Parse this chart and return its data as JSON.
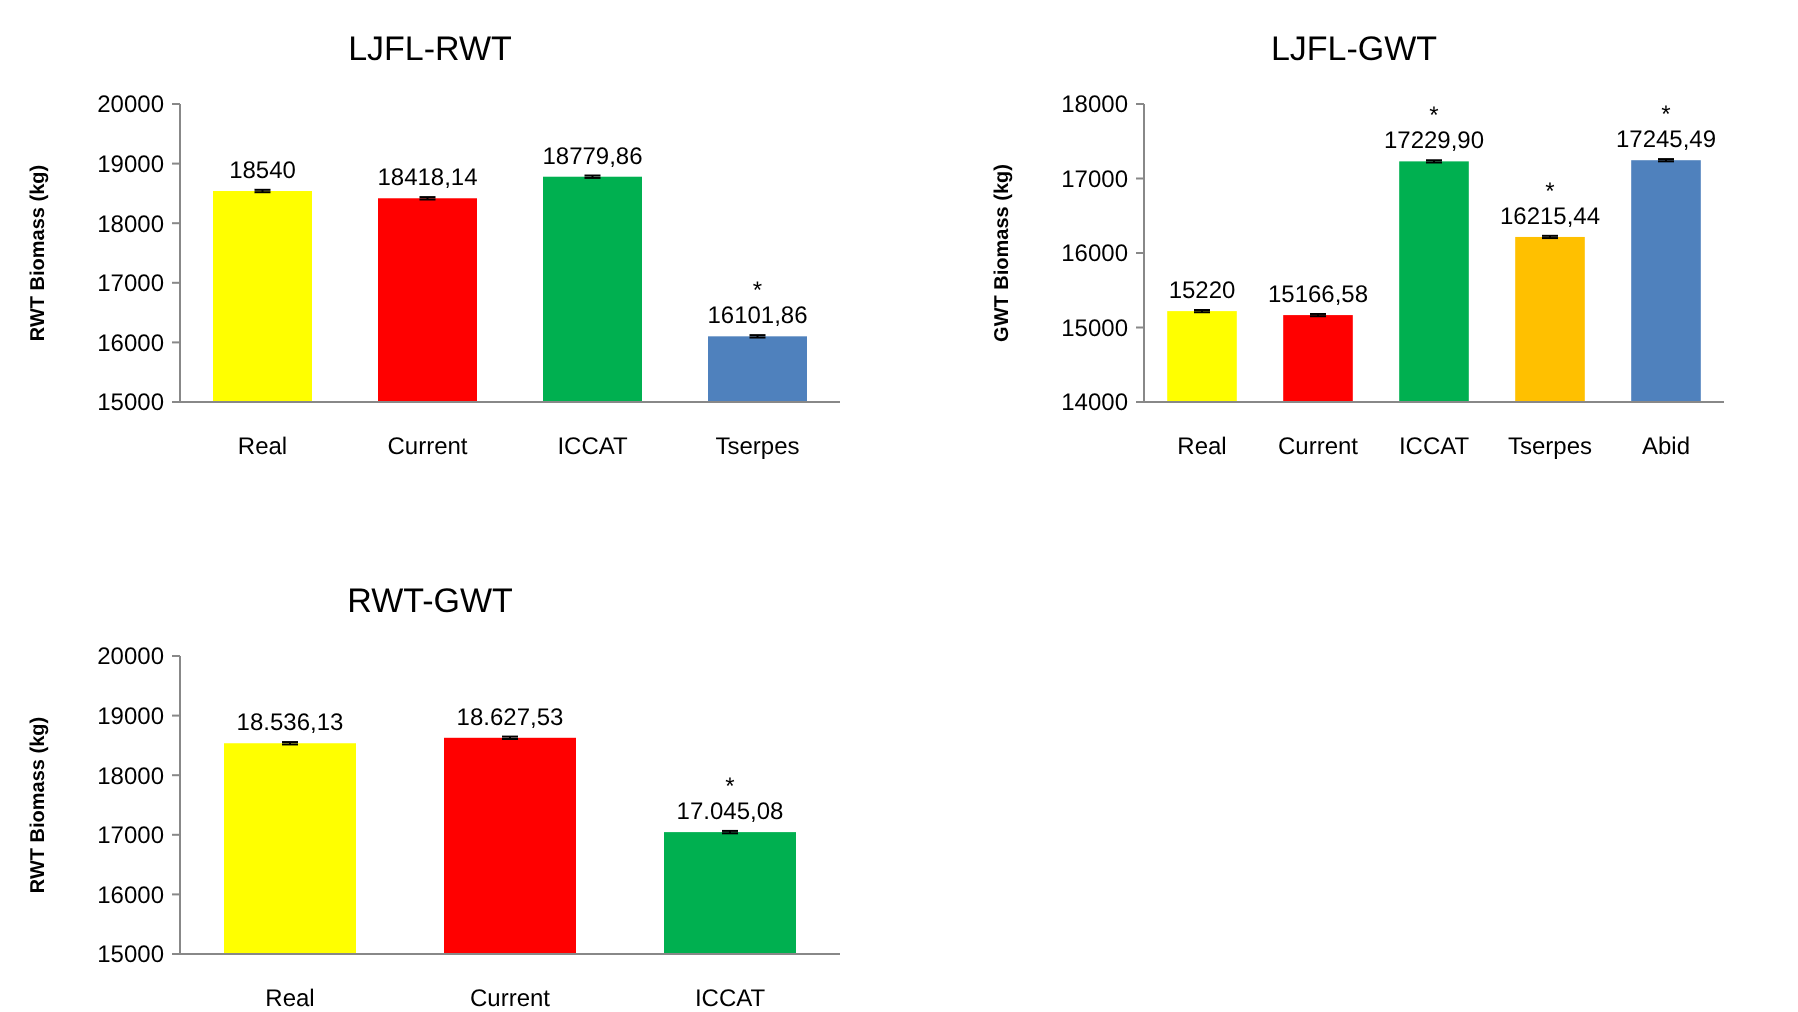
{
  "chart_data": [
    {
      "type": "bar",
      "title": "LJFL-RWT",
      "ylabel": "RWT Biomass  (kg)",
      "categories": [
        "Real",
        "Current",
        "ICCAT",
        "Tserpes"
      ],
      "values": [
        18540,
        18418.14,
        18779.86,
        16101.86
      ],
      "colors": [
        "#ffff00",
        "#ff0000",
        "#00b050",
        "#4f81bd"
      ],
      "value_labels": [
        "18540",
        "18418,14",
        "18779,86",
        "16101,86"
      ],
      "errors": [
        20,
        20,
        20,
        20
      ],
      "ylim": [
        15000,
        20000
      ],
      "yticks": [
        15000,
        16000,
        17000,
        18000,
        19000,
        20000
      ],
      "annotations": [
        {
          "text": "*",
          "x": "Tserpes",
          "y": 16101.86
        }
      ]
    },
    {
      "type": "bar",
      "title": "LJFL-GWT",
      "ylabel": "GWT Biomass  (kg)",
      "categories": [
        "Real",
        "Current",
        "ICCAT",
        "Tserpes",
        "Abid"
      ],
      "values": [
        15220,
        15166.58,
        17229.9,
        16215.44,
        17245.49
      ],
      "colors": [
        "#ffff00",
        "#ff0000",
        "#00b050",
        "#ffc000",
        "#4f81bd"
      ],
      "value_labels": [
        "15220",
        "15166,58",
        "17229,90",
        "16215,44",
        "17245,49"
      ],
      "errors": [
        15,
        15,
        15,
        15,
        15
      ],
      "ylim": [
        14000,
        18000
      ],
      "yticks": [
        14000,
        15000,
        16000,
        17000,
        18000
      ],
      "annotations": [
        {
          "text": "*",
          "x": "ICCAT",
          "y": 17229.9
        },
        {
          "text": "*",
          "x": "Tserpes",
          "y": 16215.44
        },
        {
          "text": "*",
          "x": "Abid",
          "y": 17245.49
        }
      ]
    },
    {
      "type": "bar",
      "title": "RWT-GWT",
      "ylabel": "RWT Biomass  (kg)",
      "categories": [
        "Real",
        "Current",
        "ICCAT"
      ],
      "values": [
        18536.13,
        18627.53,
        17045.08
      ],
      "colors": [
        "#ffff00",
        "#ff0000",
        "#00b050"
      ],
      "value_labels": [
        "18.536,13",
        "18.627,53",
        "17.045,08"
      ],
      "errors": [
        20,
        20,
        20
      ],
      "ylim": [
        15000,
        20000
      ],
      "yticks": [
        15000,
        16000,
        17000,
        18000,
        19000,
        20000
      ],
      "annotations": [
        {
          "text": "*",
          "x": "ICCAT",
          "y": 17045.08
        }
      ]
    }
  ]
}
